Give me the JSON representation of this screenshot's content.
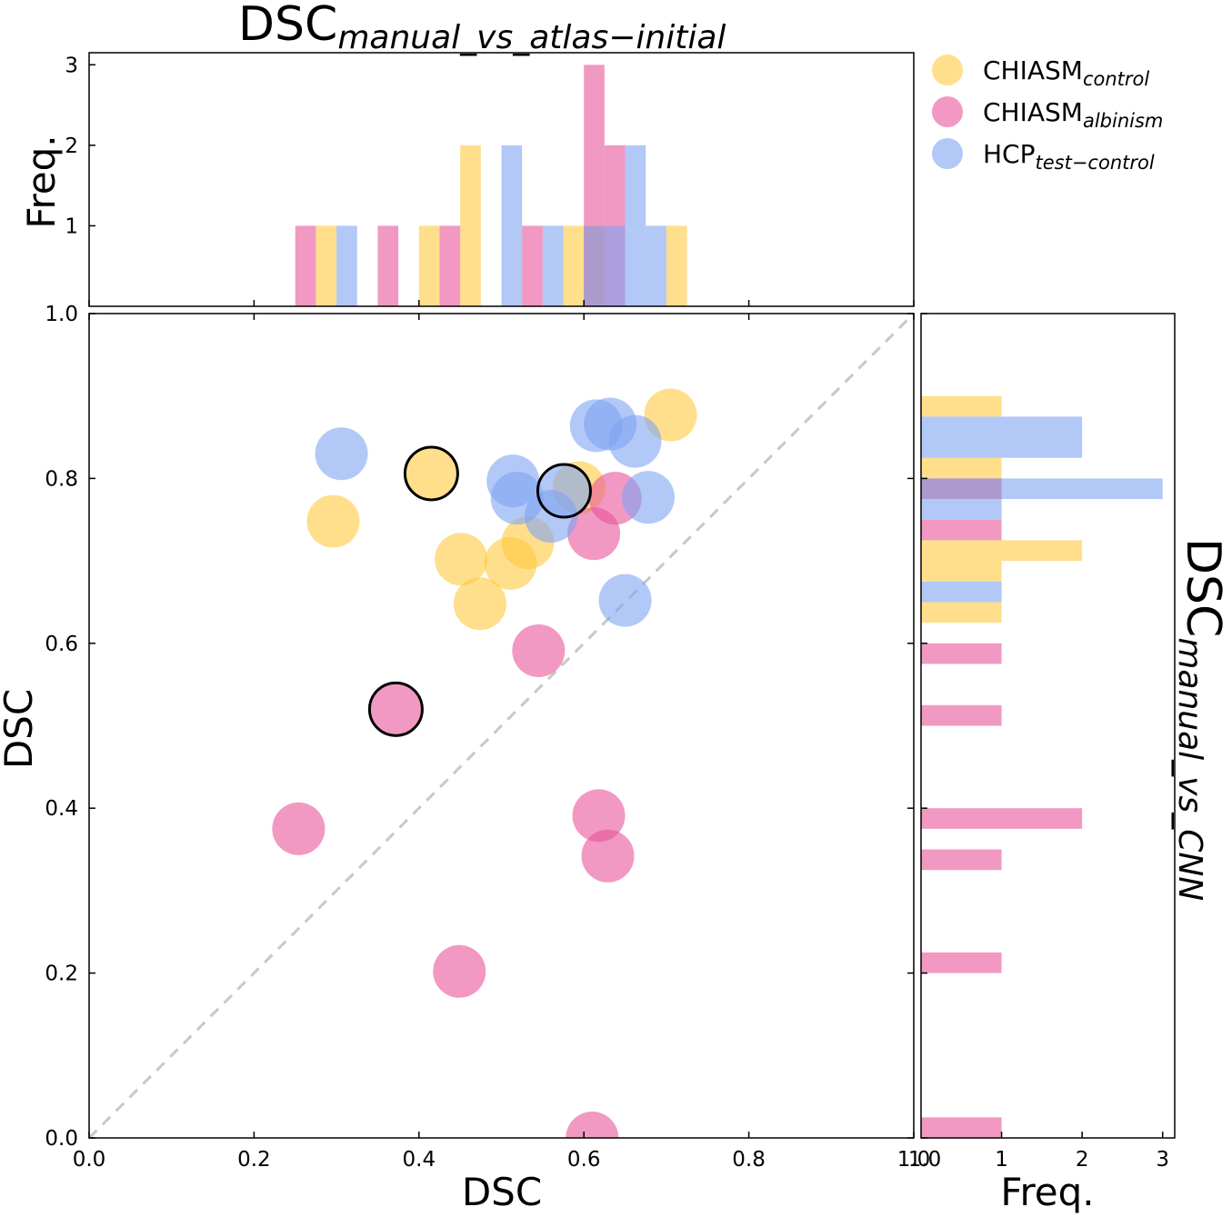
{
  "chart_data": [
    {
      "type": "scatter",
      "panel": "main",
      "xlabel": "DSC",
      "ylabel": "DSC",
      "xlim": [
        0.0,
        1.0
      ],
      "ylim": [
        0.0,
        1.0
      ],
      "xticks": [
        "0.0",
        "0.2",
        "0.4",
        "0.6",
        "0.8",
        "1.0"
      ],
      "yticks": [
        "0.0",
        "0.2",
        "0.4",
        "0.6",
        "0.8",
        "1.0"
      ],
      "diagonal": "y = x (dashed grey)",
      "series": [
        {
          "name": "CHIASM control",
          "color": "#FFC940",
          "points": [
            {
              "x": 0.296,
              "y": 0.748
            },
            {
              "x": 0.451,
              "y": 0.702
            },
            {
              "x": 0.474,
              "y": 0.648
            },
            {
              "x": 0.511,
              "y": 0.697
            },
            {
              "x": 0.532,
              "y": 0.722
            },
            {
              "x": 0.594,
              "y": 0.789
            },
            {
              "x": 0.705,
              "y": 0.877
            },
            {
              "x": 0.415,
              "y": 0.806,
              "highlight": true
            }
          ]
        },
        {
          "name": "CHIASM albinism",
          "color": "#E7559A",
          "points": [
            {
              "x": 0.254,
              "y": 0.375
            },
            {
              "x": 0.449,
              "y": 0.202
            },
            {
              "x": 0.545,
              "y": 0.591
            },
            {
              "x": 0.61,
              "y": 0.0
            },
            {
              "x": 0.618,
              "y": 0.391
            },
            {
              "x": 0.629,
              "y": 0.342
            },
            {
              "x": 0.612,
              "y": 0.733
            },
            {
              "x": 0.638,
              "y": 0.776
            },
            {
              "x": 0.372,
              "y": 0.52,
              "highlight": true
            }
          ]
        },
        {
          "name": "HCP test-control",
          "color": "#7EA3F2",
          "points": [
            {
              "x": 0.306,
              "y": 0.83
            },
            {
              "x": 0.514,
              "y": 0.797
            },
            {
              "x": 0.519,
              "y": 0.776
            },
            {
              "x": 0.56,
              "y": 0.754
            },
            {
              "x": 0.615,
              "y": 0.864
            },
            {
              "x": 0.632,
              "y": 0.866
            },
            {
              "x": 0.662,
              "y": 0.845
            },
            {
              "x": 0.678,
              "y": 0.777
            },
            {
              "x": 0.65,
              "y": 0.652
            },
            {
              "x": 0.576,
              "y": 0.785,
              "highlight": true
            }
          ]
        }
      ]
    },
    {
      "type": "bar",
      "panel": "top-histogram",
      "title": "DSC",
      "title_subscript": "manual_vs_atlas−initial",
      "ylabel": "Freq.",
      "yticks": [
        "1",
        "2",
        "3"
      ],
      "ylim": [
        0,
        3.15
      ],
      "bar_width": 0.025,
      "series": [
        {
          "name": "CHIASM control",
          "color": "#FFC940",
          "bins": [
            [
              0.275,
              1
            ],
            [
              0.4,
              1
            ],
            [
              0.45,
              2
            ],
            [
              0.575,
              1
            ],
            [
              0.6,
              1
            ],
            [
              0.7,
              1
            ]
          ]
        },
        {
          "name": "CHIASM albinism",
          "color": "#E7559A",
          "bins": [
            [
              0.25,
              1
            ],
            [
              0.35,
              1
            ],
            [
              0.425,
              1
            ],
            [
              0.525,
              1
            ],
            [
              0.6,
              3
            ],
            [
              0.625,
              2
            ]
          ]
        },
        {
          "name": "HCP test-control",
          "color": "#7EA3F2",
          "bins": [
            [
              0.3,
              1
            ],
            [
              0.5,
              2
            ],
            [
              0.55,
              1
            ],
            [
              0.6,
              1
            ],
            [
              0.625,
              1
            ],
            [
              0.65,
              2
            ],
            [
              0.675,
              1
            ]
          ]
        }
      ]
    },
    {
      "type": "bar",
      "orientation": "horizontal",
      "panel": "right-histogram",
      "title": "DSC",
      "title_subscript": "manual_vs_CNN",
      "xlabel": "Freq.",
      "xticks": [
        "1",
        "2",
        "3"
      ],
      "xlim": [
        0,
        3.15
      ],
      "bar_height": 0.025,
      "series": [
        {
          "name": "CHIASM control",
          "color": "#FFC940",
          "bins": [
            [
              0.625,
              1
            ],
            [
              0.675,
              1
            ],
            [
              0.7,
              2
            ],
            [
              0.775,
              1
            ],
            [
              0.8,
              1
            ],
            [
              0.875,
              1
            ]
          ]
        },
        {
          "name": "CHIASM albinism",
          "color": "#E7559A",
          "bins": [
            [
              0.0,
              1
            ],
            [
              0.2,
              1
            ],
            [
              0.325,
              1
            ],
            [
              0.375,
              2
            ],
            [
              0.5,
              1
            ],
            [
              0.575,
              1
            ],
            [
              0.725,
              1
            ],
            [
              0.775,
              1
            ]
          ]
        },
        {
          "name": "HCP test-control",
          "color": "#7EA3F2",
          "bins": [
            [
              0.65,
              1
            ],
            [
              0.75,
              1
            ],
            [
              0.775,
              3
            ],
            [
              0.825,
              2
            ],
            [
              0.85,
              2
            ]
          ]
        }
      ]
    }
  ],
  "legend": {
    "placement": "top-right",
    "items": [
      {
        "base": "CHIASM",
        "sub": "control",
        "color": "#FFC940"
      },
      {
        "base": "CHIASM",
        "sub": "albinism",
        "color": "#E7559A"
      },
      {
        "base": "HCP",
        "sub": "test−control",
        "color": "#7EA3F2"
      }
    ]
  },
  "right_tick_label": "1.0"
}
